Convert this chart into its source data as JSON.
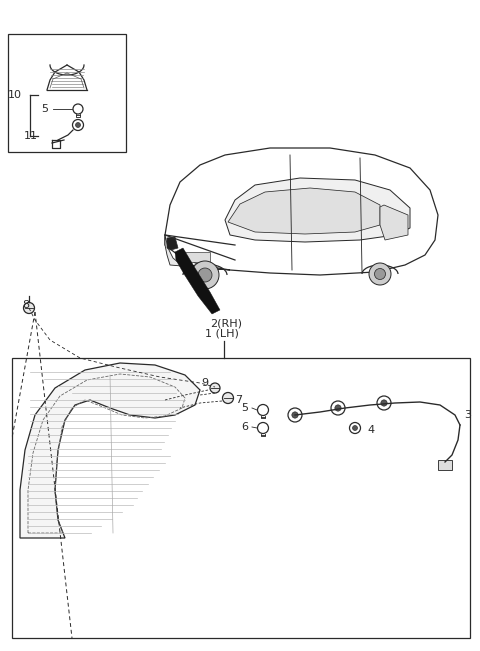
{
  "bg_color": "#ffffff",
  "line_color": "#2a2a2a",
  "arrow_label_rh": "2(RH)",
  "arrow_label_lh": "1 (LH)"
}
